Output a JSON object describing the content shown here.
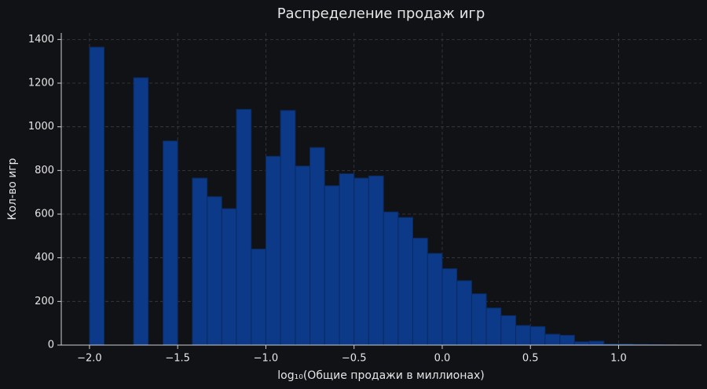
{
  "chart_data": {
    "type": "histogram",
    "title": "Распределение продаж игр",
    "x_label": "log₁₀(Общие продажи в миллионах)",
    "y_label": "Кол-во игр",
    "bins": [
      -2,
      -1.917,
      -1.833,
      -1.75,
      -1.667,
      -1.583,
      -1.5,
      -1.417,
      -1.333,
      -1.25,
      -1.167,
      -1.083,
      -1.0,
      -0.917,
      -0.833,
      -0.75,
      -0.667,
      -0.583,
      -0.5,
      -0.417,
      -0.333,
      -0.25,
      -0.167,
      -0.083,
      0,
      0.083,
      0.167,
      0.25,
      0.333,
      0.417,
      0.5,
      0.583,
      0.667,
      0.75,
      0.833,
      0.917,
      1.0,
      1.083,
      1.167,
      1.25,
      1.333
    ],
    "values": [
      1365,
      0,
      0,
      1225,
      0,
      935,
      0,
      765,
      680,
      625,
      1080,
      440,
      865,
      1075,
      820,
      905,
      730,
      785,
      765,
      775,
      610,
      585,
      490,
      420,
      350,
      295,
      235,
      170,
      135,
      90,
      85,
      50,
      45,
      15,
      18,
      5,
      5,
      3,
      2,
      1
    ],
    "color": "#0c3a88",
    "edge_color": "#0a2a60",
    "xlim": [
      -2.16,
      1.47
    ],
    "ylim": [
      0,
      1430
    ],
    "xticks": [
      {
        "value": -2,
        "label": "−2.0"
      },
      {
        "value": -1.5,
        "label": "−1.5"
      },
      {
        "value": -1,
        "label": "−1.0"
      },
      {
        "value": -0.5,
        "label": "−0.5"
      },
      {
        "value": 0,
        "label": "0.0"
      },
      {
        "value": 0.5,
        "label": "0.5"
      },
      {
        "value": 1,
        "label": "1.0"
      }
    ],
    "yticks": [
      0,
      200,
      400,
      600,
      800,
      1000,
      1200,
      1400
    ],
    "grid": true
  }
}
